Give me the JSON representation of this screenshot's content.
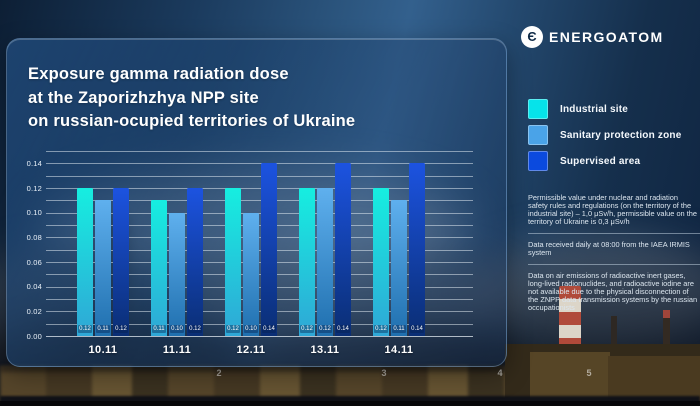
{
  "logo": {
    "text": "ENERGOATOM",
    "icon": "energoatom-monogram",
    "icon_glyph": "Є"
  },
  "title": {
    "lines": [
      "Exposure gamma radiation dose",
      "at the Zaporizhzhya NPP site",
      "on russian-ocupied territories of Ukraine"
    ]
  },
  "legend": {
    "items": [
      {
        "label": "Industrial site",
        "color": "#06e3ea"
      },
      {
        "label": "Sanitary protection zone",
        "color": "#4aa3e8"
      },
      {
        "label": "Supervised area",
        "color": "#0b4ade"
      }
    ]
  },
  "notes": {
    "blocks": [
      {
        "lines": [
          "Permissible value under nuclear and radiation",
          "safety rules and regulations (on the territory of the",
          "industrial site) – 1,0 μSv/h, permissible value on the",
          "territory of Ukraine is 0,3 μSv/h"
        ]
      },
      {
        "lines": [
          "Data received daily at 08:00 from the IAEA IRMIS",
          "system"
        ]
      },
      {
        "lines": [
          "Data on air emissions of radioactive inert gases,",
          "long-lived radionuclides, and radioactive iodine are",
          "not available due to the physical disconnection of",
          "the ZNPP data transmission systems by the russian",
          "occupationists"
        ]
      }
    ]
  },
  "chart_data": {
    "type": "bar",
    "title": "Exposure gamma radiation dose at the Zaporizhzhya NPP site on russian-ocupied territories of Ukraine",
    "categories": [
      "10.11",
      "11.11",
      "12.11",
      "13.11",
      "14.11"
    ],
    "series": [
      {
        "name": "Industrial site",
        "color": "#06e3ea",
        "color_top": "#16eee0",
        "color_bottom": "#2fa7d6",
        "values": [
          0.12,
          0.11,
          0.12,
          0.12,
          0.12
        ]
      },
      {
        "name": "Sanitary protection zone",
        "color": "#4aa3e8",
        "color_top": "#5fb0ee",
        "color_bottom": "#1f6fae",
        "values": [
          0.11,
          0.1,
          0.1,
          0.12,
          0.11
        ]
      },
      {
        "name": "Supervised area",
        "color": "#0b4ade",
        "color_top": "#1c53e0",
        "color_bottom": "#0a2e74",
        "values": [
          0.12,
          0.12,
          0.14,
          0.14,
          0.14
        ]
      }
    ],
    "ylim": [
      0,
      0.15
    ],
    "grid_step": 0.01,
    "yticks_labeled": [
      0,
      0.02,
      0.04,
      0.06,
      0.08,
      0.1,
      0.12,
      0.14
    ],
    "value_labels": true,
    "grid": true,
    "legend_position": "right"
  },
  "background": {
    "unit_numbers": [
      "2",
      "3",
      "4",
      "5"
    ]
  }
}
